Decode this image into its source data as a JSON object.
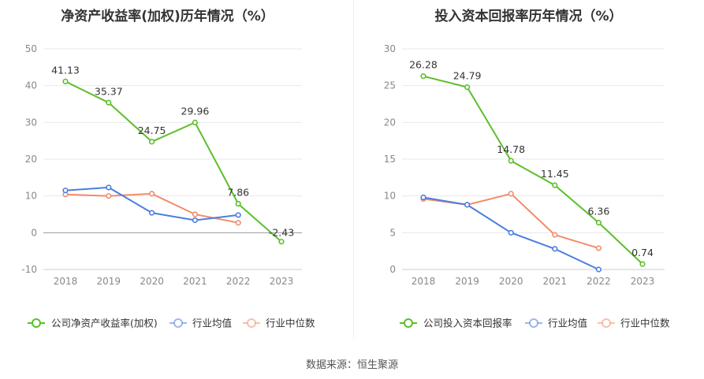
{
  "source": "数据来源：恒生聚源",
  "colors": {
    "company": "#5cbf2a",
    "avg": "#4a7ee0",
    "median": "#f28c6a",
    "grid": "#e8e8e8",
    "axis": "#cccccc"
  },
  "chart_data": [
    {
      "type": "line",
      "title": "净资产收益率(加权)历年情况（%）",
      "categories": [
        "2018",
        "2019",
        "2020",
        "2021",
        "2022",
        "2023"
      ],
      "ylim": [
        -10,
        50
      ],
      "yticks": [
        -10,
        0,
        10,
        20,
        30,
        40,
        50
      ],
      "legend_position": "bottom",
      "series": [
        {
          "name": "公司净资产收益率(加权)",
          "values": [
            41.13,
            35.37,
            24.75,
            29.96,
            7.86,
            -2.43
          ],
          "labels": [
            "41.13",
            "35.37",
            "24.75",
            "29.96",
            "7.86",
            "-2.43"
          ]
        },
        {
          "name": "行业均值",
          "values": [
            11.5,
            12.3,
            5.4,
            3.4,
            4.8,
            null
          ]
        },
        {
          "name": "行业中位数",
          "values": [
            10.4,
            10.0,
            10.6,
            5.0,
            2.7,
            null
          ]
        }
      ]
    },
    {
      "type": "line",
      "title": "投入资本回报率历年情况（%）",
      "categories": [
        "2018",
        "2019",
        "2020",
        "2021",
        "2022",
        "2023"
      ],
      "ylim": [
        0,
        30
      ],
      "yticks": [
        0,
        5,
        10,
        15,
        20,
        25,
        30
      ],
      "legend_position": "bottom",
      "series": [
        {
          "name": "公司投入资本回报率",
          "values": [
            26.28,
            24.79,
            14.78,
            11.45,
            6.36,
            0.74
          ],
          "labels": [
            "26.28",
            "24.79",
            "14.78",
            "11.45",
            "6.36",
            "0.74"
          ]
        },
        {
          "name": "行业均值",
          "values": [
            9.8,
            8.8,
            5.0,
            2.8,
            0.0,
            null
          ]
        },
        {
          "name": "行业中位数",
          "values": [
            9.6,
            8.8,
            10.3,
            4.7,
            2.9,
            null
          ]
        }
      ]
    }
  ]
}
